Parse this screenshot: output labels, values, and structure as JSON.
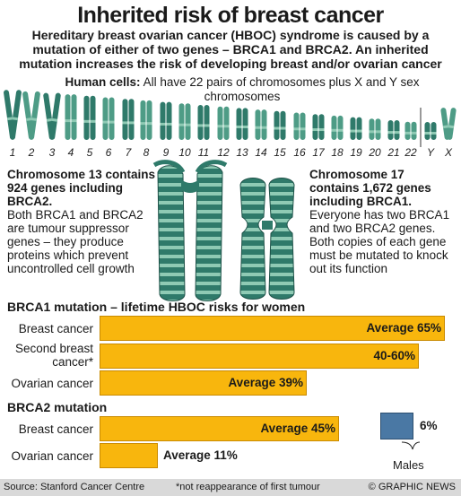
{
  "title": "Inherited risk of breast cancer",
  "subtitle": "Hereditary breast ovarian cancer (HBOC) syndrome is caused by a mutation of either of two genes – BRCA1 and BRCA2. An inherited mutation increases the risk of developing breast and/or ovarian cancer",
  "cells": {
    "label": "Human cells:",
    "text": "All have 22 pairs of chromosomes plus X and Y sex chromosomes"
  },
  "chromosome_labels": [
    "1",
    "2",
    "3",
    "4",
    "5",
    "6",
    "7",
    "8",
    "9",
    "10",
    "11",
    "12",
    "13",
    "14",
    "15",
    "16",
    "17",
    "18",
    "19",
    "20",
    "21",
    "22",
    "Y",
    "X"
  ],
  "colors": {
    "chromosome_dark": "#2f7a6a",
    "chromosome_light": "#8fcab4",
    "bar": "#f8b60d",
    "males": "#4a78a4",
    "footer": "#d9d9d9"
  },
  "chromosome13": {
    "heading": "Chromosome 13 contains 924 genes including BRCA2.",
    "body": "Both BRCA1 and BRCA2 are tumour suppressor genes – they produce proteins which prevent uncontrolled cell growth"
  },
  "chromosome17": {
    "heading": "Chromosome 17 contains 1,672 genes including BRCA1.",
    "body": "Everyone has two BRCA1 and two BRCA2 genes. Both copies of each gene must be mutated to knock out its function"
  },
  "brca1": {
    "heading": "BRCA1 mutation – lifetime HBOC risks for women",
    "rows": [
      {
        "label": "Breast cancer",
        "value_label": "Average 65%",
        "value": 65
      },
      {
        "label": "Second breast cancer*",
        "value_label": "40-60%",
        "value": 60
      },
      {
        "label": "Ovarian cancer",
        "value_label": "Average 39%",
        "value": 39
      }
    ]
  },
  "brca2": {
    "heading": "BRCA2 mutation",
    "rows": [
      {
        "label": "Breast cancer",
        "value_label": "Average 45%",
        "value": 45
      },
      {
        "label": "Ovarian cancer",
        "value_label": "Average 11%",
        "value": 11
      }
    ],
    "males": {
      "value_label": "6%",
      "value": 6,
      "label": "Males"
    }
  },
  "footer": {
    "source": "Source: Stanford Cancer Centre",
    "note": "*not reappearance of first tumour",
    "credit": "© GRAPHIC NEWS"
  }
}
